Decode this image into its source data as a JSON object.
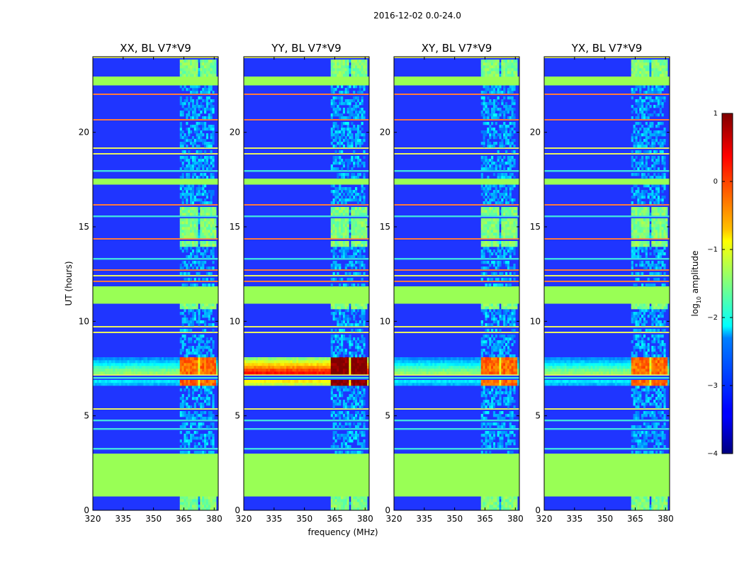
{
  "chart_data": {
    "type": "heatmap",
    "suptitle": "2016-12-02 0.0-24.0",
    "xlabel": "frequency (MHz)",
    "ylabel": "UT (hours)",
    "xlim": [
      320,
      382
    ],
    "ylim": [
      0,
      24
    ],
    "xticks": [
      320,
      335,
      350,
      365,
      380
    ],
    "yticks": [
      0,
      5,
      10,
      15,
      20
    ],
    "panels": [
      {
        "title": "XX, BL V7*V9",
        "burst_level": 0.72
      },
      {
        "title": "YY, BL V7*V9",
        "burst_level": 0.95
      },
      {
        "title": "XY, BL V7*V9",
        "burst_level": 0.72
      },
      {
        "title": "YX, BL V7*V9",
        "burst_level": 0.72
      }
    ],
    "colorbar": {
      "label": "log10 amplitude",
      "label_main": "log",
      "label_sub": "10",
      "label_rest": " amplitude",
      "min": -4,
      "max": 1,
      "ticks": [
        1,
        0,
        -1,
        -2,
        -3,
        -4
      ],
      "tick_labels": [
        "1",
        "0",
        "−1",
        "−2",
        "−3",
        "−4"
      ]
    },
    "features": {
      "flagged_blocks_hours": [
        [
          0.8,
          3.0
        ],
        [
          11.0,
          11.8
        ],
        [
          17.3,
          17.6
        ],
        [
          22.5,
          22.9
        ]
      ],
      "rfi_band_mhz": [
        363,
        380
      ],
      "rfi_comb_channels_mhz": [
        [
          363.5,
          367.5
        ],
        [
          368.5,
          371.5
        ],
        [
          373,
          376.5
        ],
        [
          377.5,
          380.5
        ]
      ],
      "strong_emission_hours": [
        6.6,
        8.1
      ]
    }
  }
}
